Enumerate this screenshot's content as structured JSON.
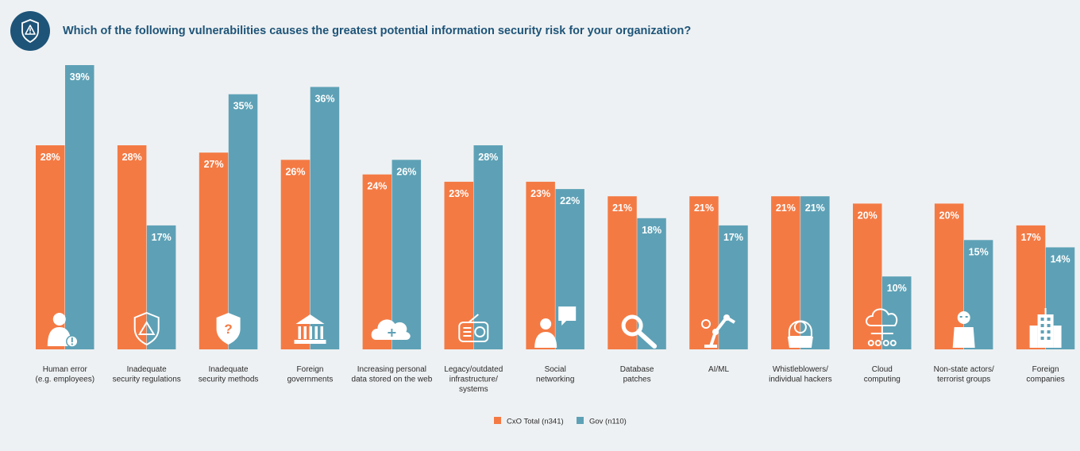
{
  "header": {
    "icon": "shield-warning-icon",
    "title": "Which of the following vulnerabilities causes the greatest potential information security risk for your organization?"
  },
  "colors": {
    "cxo": "#f47a44",
    "gov": "#5ea1b6",
    "title": "#1e5478",
    "background": "#eef1f3"
  },
  "chart_data": {
    "type": "bar",
    "title": "Which of the following vulnerabilities causes the greatest potential information security risk for your organization?",
    "ylim": [
      0,
      39
    ],
    "grid": false,
    "legend": "bottom-center",
    "categories": [
      [
        "Human error",
        "(e.g. employees)"
      ],
      [
        "Inadequate",
        "security regulations"
      ],
      [
        "Inadequate",
        "security methods"
      ],
      [
        "Foreign",
        "governments"
      ],
      [
        "Increasing personal",
        "data stored on the web"
      ],
      [
        "Legacy/outdated",
        "infrastructure/",
        "systems"
      ],
      [
        "Social",
        "networking"
      ],
      [
        "Database",
        "patches"
      ],
      [
        "AI/ML"
      ],
      [
        "Whistleblowers/",
        "individual hackers"
      ],
      [
        "Cloud",
        "computing"
      ],
      [
        "Non-state actors/",
        "terrorist groups"
      ],
      [
        "Foreign",
        "companies"
      ]
    ],
    "category_icons": [
      "person-alert-icon",
      "shield-warning-icon",
      "shield-question-icon",
      "government-building-icon",
      "cloud-plus-icon",
      "radio-icon",
      "person-chat-icon",
      "search-wrench-icon",
      "robot-arm-icon",
      "hacker-icon",
      "cloud-network-icon",
      "masked-person-icon",
      "office-building-icon"
    ],
    "series": [
      {
        "name": "CxO Total (n341)",
        "values": [
          28,
          28,
          27,
          26,
          24,
          23,
          23,
          21,
          21,
          21,
          20,
          20,
          17
        ]
      },
      {
        "name": "Gov (n110)",
        "values": [
          39,
          17,
          35,
          36,
          26,
          28,
          22,
          18,
          17,
          21,
          10,
          15,
          14
        ]
      }
    ],
    "value_suffix": "%"
  }
}
